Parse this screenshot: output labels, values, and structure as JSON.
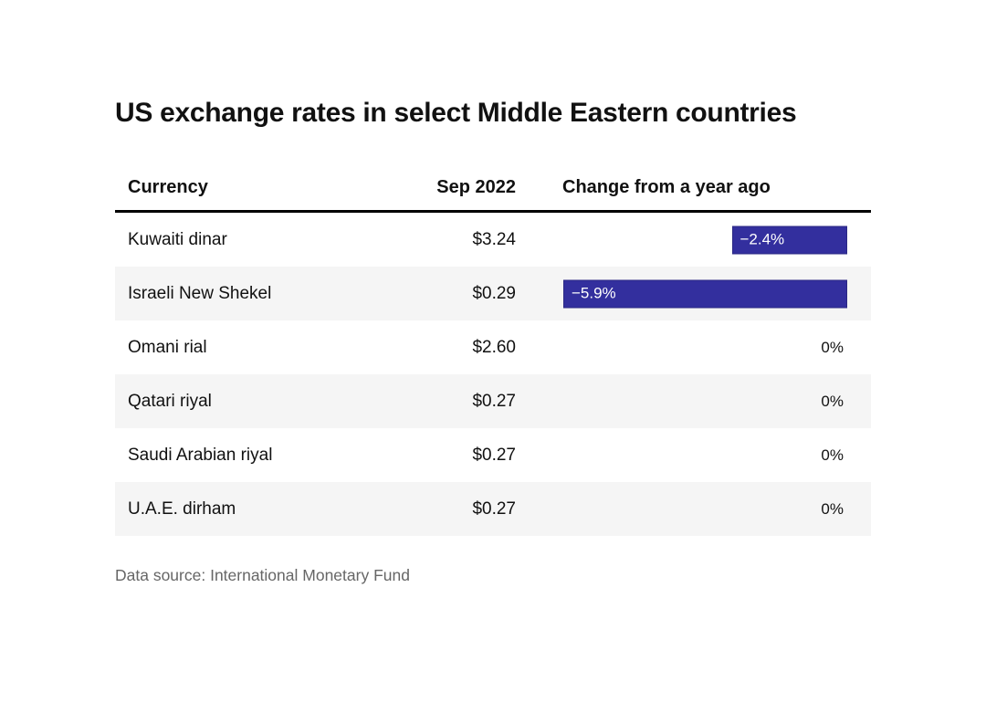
{
  "title": "US exchange rates in select Middle Eastern countries",
  "table": {
    "headers": {
      "currency": "Currency",
      "rate": "Sep 2022",
      "change": "Change from a year ago"
    },
    "rows": [
      {
        "currency": "Kuwaiti dinar",
        "rate": "$3.24",
        "change_label": "−2.4%",
        "change_value": -2.4
      },
      {
        "currency": "Israeli New Shekel",
        "rate": "$0.29",
        "change_label": "−5.9%",
        "change_value": -5.9
      },
      {
        "currency": "Omani rial",
        "rate": "$2.60",
        "change_label": "0%",
        "change_value": 0
      },
      {
        "currency": "Qatari riyal",
        "rate": "$0.27",
        "change_label": "0%",
        "change_value": 0
      },
      {
        "currency": "Saudi Arabian riyal",
        "rate": "$0.27",
        "change_label": "0%",
        "change_value": 0
      },
      {
        "currency": "U.A.E. dirham",
        "rate": "$0.27",
        "change_label": "0%",
        "change_value": 0
      }
    ]
  },
  "source_note": "Data source: International Monetary Fund",
  "colors": {
    "bar_fill": "#332f9e",
    "bar_border": "#2b2884",
    "alt_row_background": "#f5f5f5",
    "text": "#111111",
    "muted_text": "#666666"
  },
  "chart_data": {
    "type": "bar",
    "orientation": "horizontal",
    "title": "US exchange rates in select Middle Eastern countries",
    "categories": [
      "Kuwaiti dinar",
      "Israeli New Shekel",
      "Omani rial",
      "Qatari riyal",
      "Saudi Arabian riyal",
      "U.A.E. dirham"
    ],
    "series": [
      {
        "name": "Sep 2022 (USD)",
        "values": [
          3.24,
          0.29,
          2.6,
          0.27,
          0.27,
          0.27
        ]
      },
      {
        "name": "Change from a year ago (%)",
        "values": [
          -2.4,
          -5.9,
          0,
          0,
          0,
          0
        ]
      }
    ],
    "xlabel": "",
    "ylabel": "",
    "xlim": [
      -5.9,
      0
    ],
    "bar_anchor": "right",
    "grid": false,
    "legend": false,
    "source": "Data source: International Monetary Fund"
  }
}
